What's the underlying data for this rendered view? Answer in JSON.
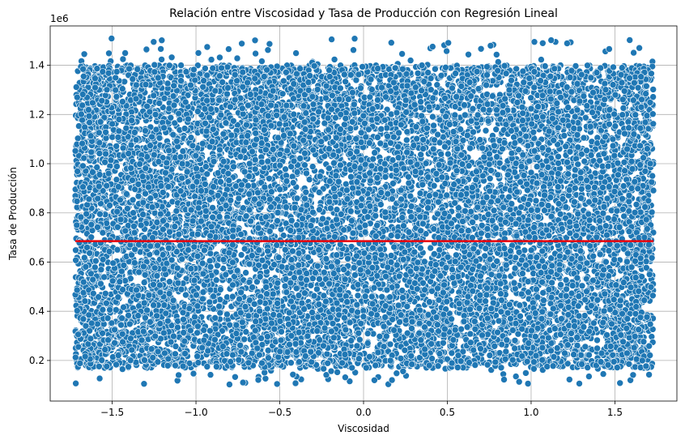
{
  "chart_data": {
    "type": "scatter",
    "title": "Relación entre Viscosidad y Tasa de Producción con Regresión Lineal",
    "xlabel": "Viscosidad",
    "ylabel": "Tasa de Producción",
    "offset_text": "1e6",
    "xlim": [
      -1.87,
      1.87
    ],
    "ylim": [
      35000,
      1560000
    ],
    "x_ticks": [
      -1.5,
      -1.0,
      -0.5,
      0.0,
      0.5,
      1.0,
      1.5
    ],
    "x_tick_labels": [
      "−1.5",
      "−1.0",
      "−0.5",
      "0.0",
      "0.5",
      "1.0",
      "1.5"
    ],
    "y_ticks": [
      200000,
      400000,
      600000,
      800000,
      1000000,
      1200000,
      1400000
    ],
    "y_tick_labels": [
      "0.2",
      "0.4",
      "0.6",
      "0.8",
      "1.0",
      "1.2",
      "1.4"
    ],
    "grid": true,
    "scatter": {
      "color": "#1f77b4",
      "edge_color": "#ffffff",
      "x_range": [
        -1.72,
        1.73
      ],
      "y_range": [
        100000,
        1510000
      ],
      "approx_point_count": 14000
    },
    "regression_line": {
      "color": "#e8000b",
      "x": [
        -1.72,
        1.73
      ],
      "y": [
        685000,
        685000
      ]
    }
  }
}
